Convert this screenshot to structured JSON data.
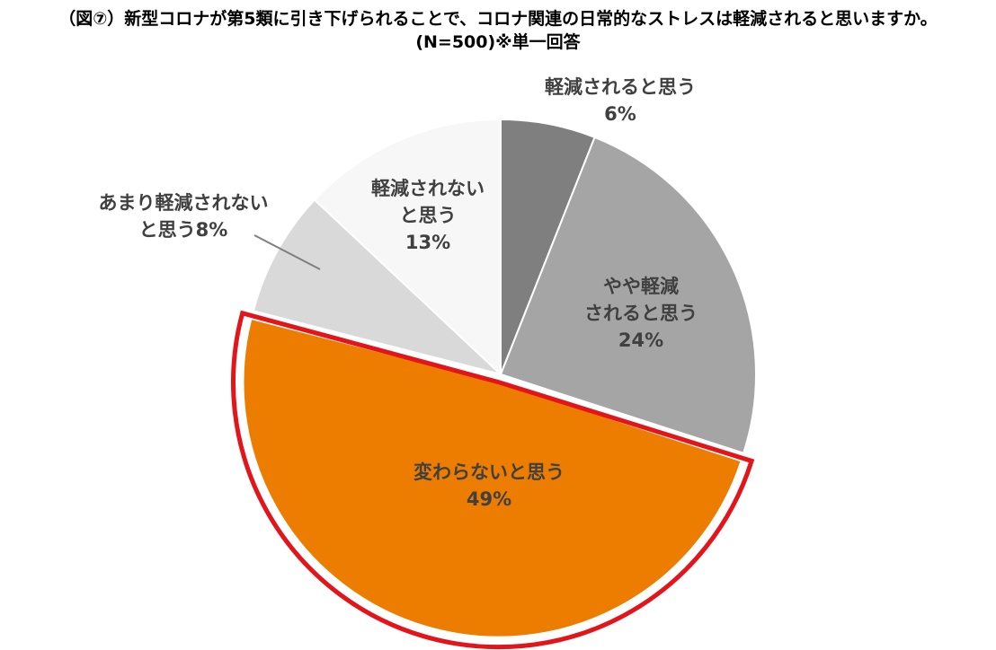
{
  "title": {
    "line1": "（図⑦）新型コロナが第5類に引き下げられることで、コロナ関連の日常的なストレスは軽減されると思いますか。",
    "line2": "(N=500)※単一回答"
  },
  "chart_data": {
    "type": "pie",
    "slices": [
      {
        "label_lines": [
          "軽減されると思う"
        ],
        "percent_label": "6%",
        "value": 6,
        "color": "#7f7f7f"
      },
      {
        "label_lines": [
          "やや軽減",
          "されると思う"
        ],
        "percent_label": "24%",
        "value": 24,
        "color": "#a5a5a5"
      },
      {
        "label_lines": [
          "変わらないと思う"
        ],
        "percent_label": "49%",
        "value": 49,
        "color": "#ed7d00",
        "highlighted": true
      },
      {
        "label_lines": [
          "あまり軽減されない",
          "と思う8%"
        ],
        "percent_label": "",
        "value": 8,
        "color": "#d9d9d9"
      },
      {
        "label_lines": [
          "軽減されない",
          "と思う"
        ],
        "percent_label": "13%",
        "value": 13,
        "color": "#f7f7f7"
      }
    ],
    "highlight_color": "#e3151a",
    "start": "12 o'clock, clockwise"
  }
}
